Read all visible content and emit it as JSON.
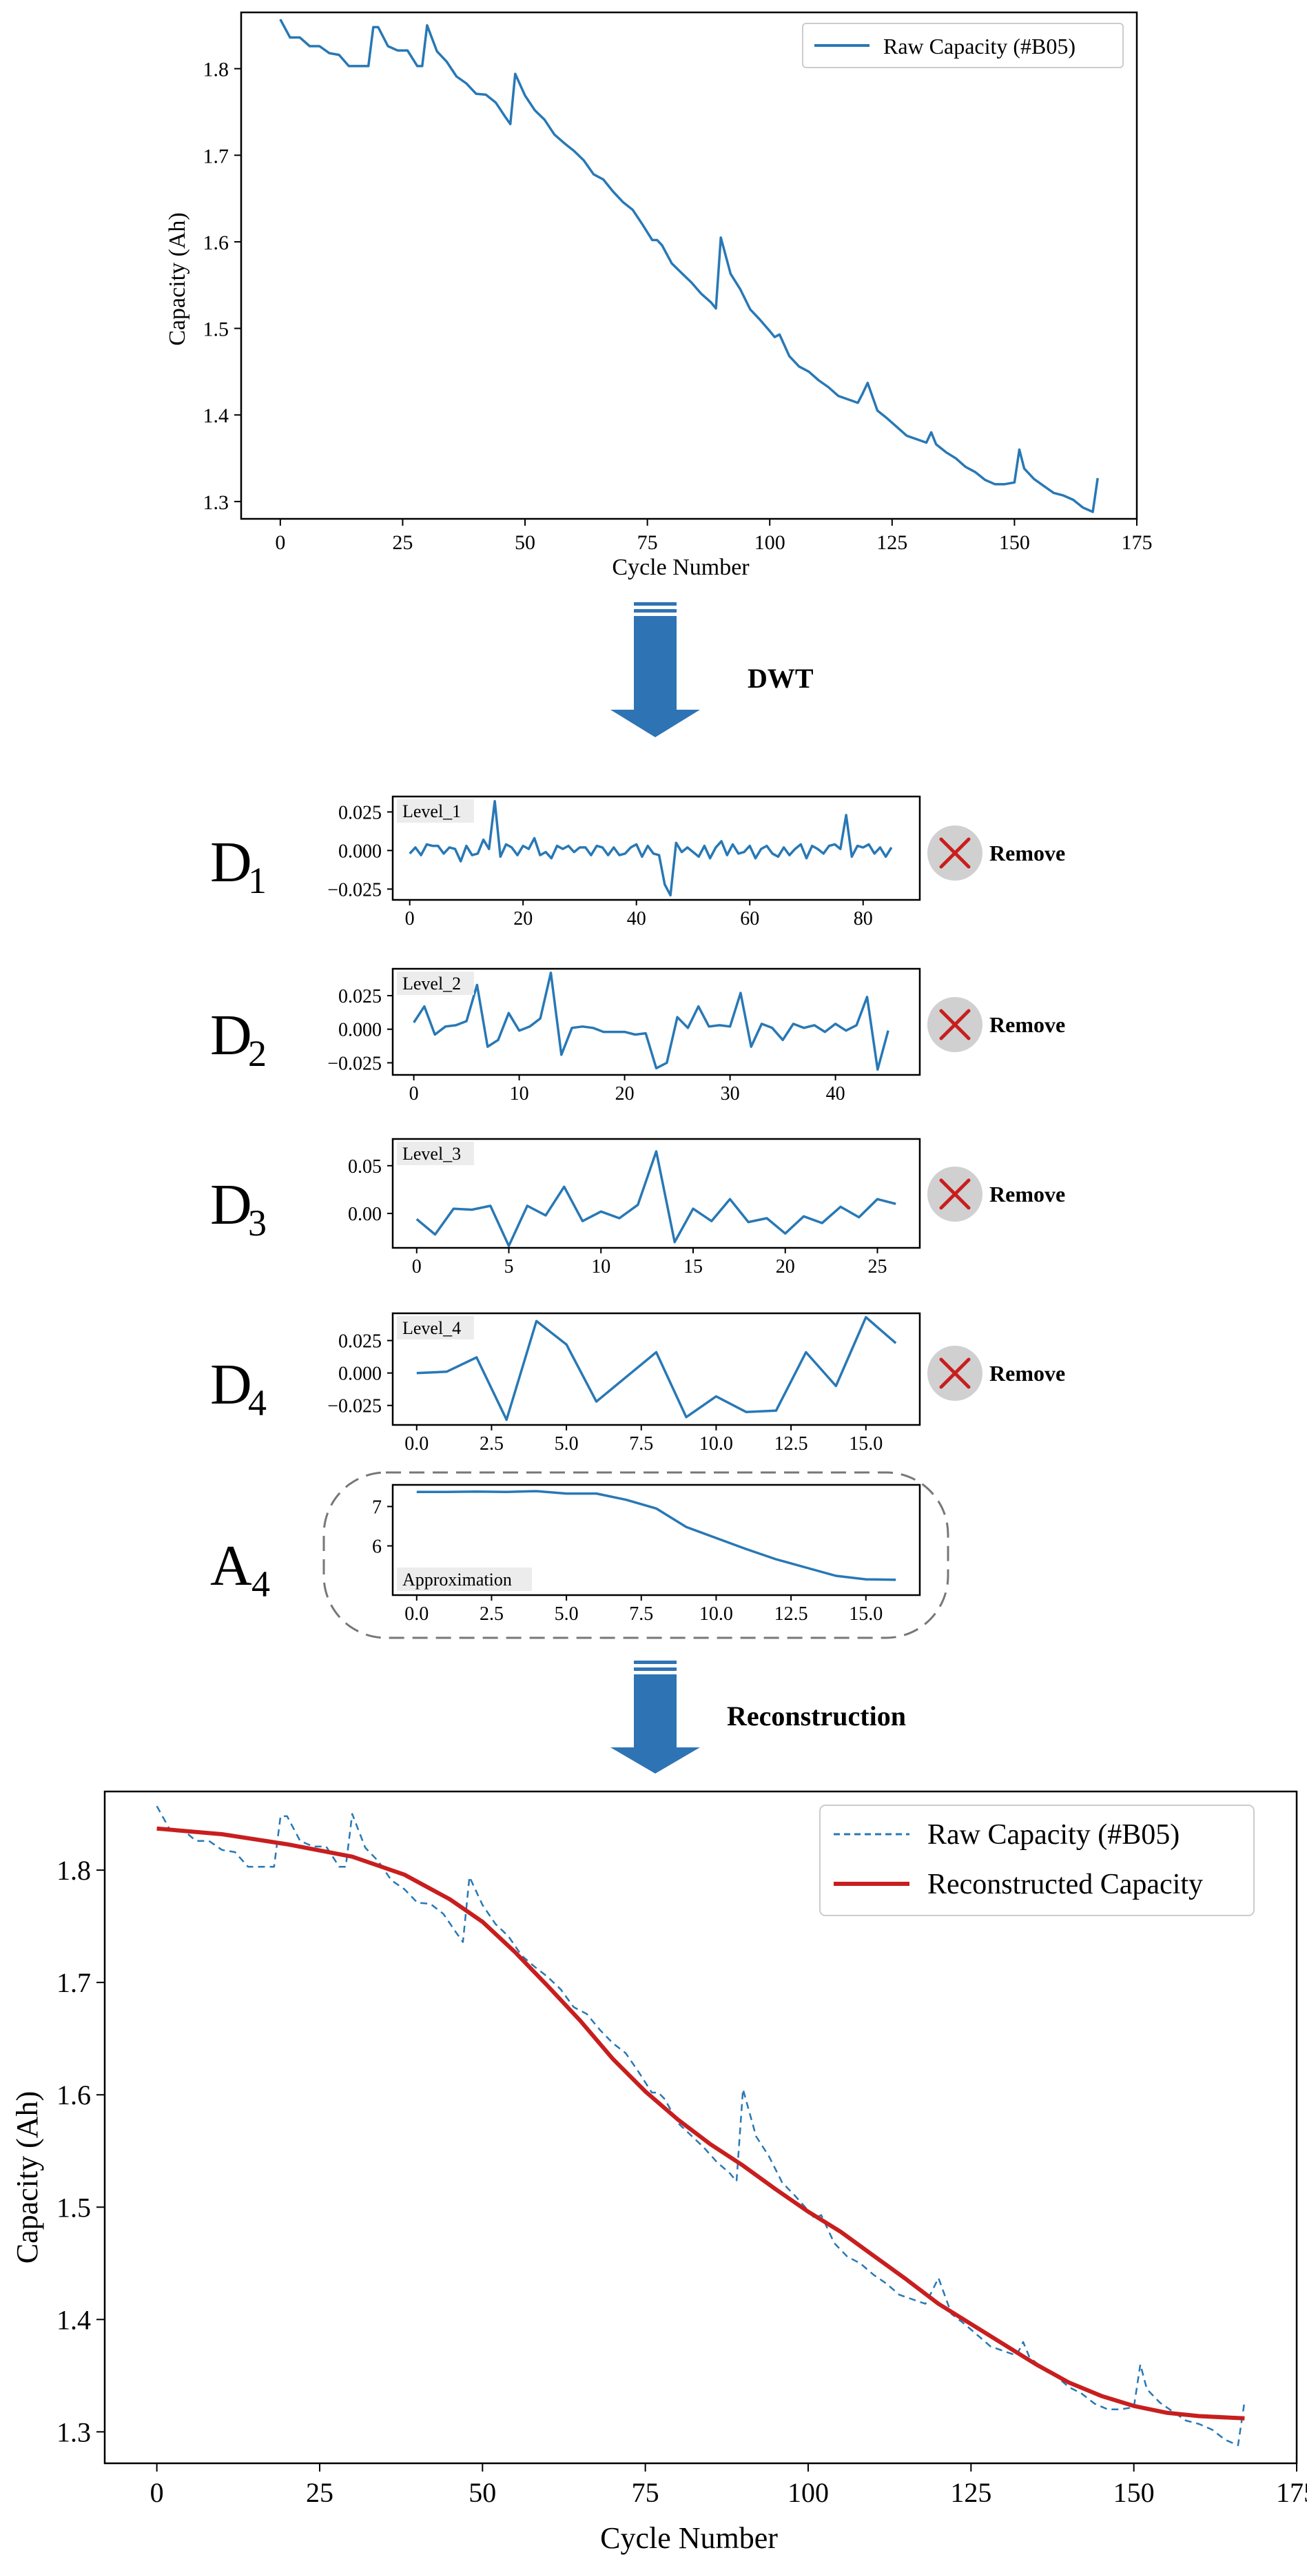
{
  "colors": {
    "raw": "#2878b5",
    "reconstructed": "#c81e1e",
    "arrow": "#2e74b5",
    "remove_badge_bg": "#d0d0d0",
    "remove_x": "#c81e1e",
    "level_tag_bg": "#ececec"
  },
  "icons": {
    "remove": "close-x-icon",
    "arrow": "down-arrow-icon"
  },
  "steps": {
    "dwt": "DWT",
    "reconstruction": "Reconstruction"
  },
  "remove_label": "Remove",
  "rows": [
    {
      "letter": "D",
      "sub": "1"
    },
    {
      "letter": "D",
      "sub": "2"
    },
    {
      "letter": "D",
      "sub": "3"
    },
    {
      "letter": "D",
      "sub": "4"
    },
    {
      "letter": "A",
      "sub": "4"
    }
  ],
  "chart_data": [
    {
      "id": "raw",
      "type": "line",
      "xlabel": "Cycle Number",
      "ylabel": "Capacity (Ah)",
      "xlim": [
        -8,
        175
      ],
      "ylim": [
        1.28,
        1.865
      ],
      "xticks": [
        0,
        25,
        50,
        75,
        100,
        125,
        150,
        175
      ],
      "yticks": [
        1.3,
        1.4,
        1.5,
        1.6,
        1.7,
        1.8
      ],
      "xticklabels": [
        "0",
        "25",
        "50",
        "75",
        "100",
        "125",
        "150",
        "175"
      ],
      "yticklabels": [
        "1.3",
        "1.4",
        "1.5",
        "1.6",
        "1.7",
        "1.8"
      ],
      "legend_position": "top-right",
      "series": [
        {
          "name": "Raw Capacity (#B05)",
          "x": [
            0,
            2,
            4,
            6,
            8,
            10,
            12,
            14,
            16,
            18,
            19,
            20,
            22,
            24,
            26,
            28,
            29,
            30,
            32,
            34,
            36,
            38,
            40,
            42,
            44,
            46,
            47,
            48,
            50,
            52,
            54,
            56,
            58,
            60,
            62,
            64,
            66,
            68,
            70,
            72,
            74,
            76,
            77,
            78,
            80,
            82,
            84,
            86,
            88,
            89,
            90,
            92,
            94,
            96,
            98,
            100,
            101,
            102,
            104,
            106,
            108,
            110,
            112,
            114,
            116,
            118,
            119,
            120,
            122,
            124,
            126,
            128,
            130,
            132,
            133,
            134,
            136,
            138,
            140,
            142,
            144,
            146,
            148,
            150,
            151,
            152,
            154,
            156,
            158,
            160,
            162,
            164,
            166,
            167
          ],
          "y": [
            1.857,
            1.836,
            1.836,
            1.826,
            1.826,
            1.818,
            1.816,
            1.803,
            1.803,
            1.803,
            1.848,
            1.848,
            1.826,
            1.821,
            1.821,
            1.803,
            1.803,
            1.85,
            1.82,
            1.808,
            1.791,
            1.783,
            1.771,
            1.77,
            1.761,
            1.744,
            1.736,
            1.794,
            1.769,
            1.752,
            1.741,
            1.724,
            1.714,
            1.705,
            1.694,
            1.678,
            1.672,
            1.658,
            1.646,
            1.637,
            1.62,
            1.602,
            1.602,
            1.596,
            1.575,
            1.564,
            1.553,
            1.54,
            1.53,
            1.523,
            1.605,
            1.563,
            1.545,
            1.522,
            1.51,
            1.497,
            1.49,
            1.493,
            1.468,
            1.456,
            1.45,
            1.44,
            1.432,
            1.422,
            1.418,
            1.414,
            1.425,
            1.437,
            1.405,
            1.396,
            1.386,
            1.376,
            1.372,
            1.368,
            1.38,
            1.366,
            1.357,
            1.35,
            1.34,
            1.334,
            1.325,
            1.32,
            1.32,
            1.322,
            1.36,
            1.338,
            1.326,
            1.318,
            1.31,
            1.307,
            1.302,
            1.293,
            1.288,
            1.327
          ]
        }
      ]
    },
    {
      "id": "d1",
      "type": "line",
      "tag": "Level_1",
      "xlim": [
        -3,
        90
      ],
      "ylim": [
        -0.032,
        0.035
      ],
      "xticks": [
        0,
        20,
        40,
        60,
        80
      ],
      "yticks": [
        -0.025,
        0.0,
        0.025
      ],
      "xticklabels": [
        "0",
        "20",
        "40",
        "60",
        "80"
      ],
      "yticklabels": [
        "−0.025",
        "0.000",
        "0.025"
      ],
      "series": [
        {
          "y": [
            -0.002,
            0.002,
            -0.003,
            0.004,
            0.003,
            0.003,
            -0.002,
            0.002,
            0.001,
            -0.007,
            0.003,
            -0.003,
            -0.002,
            0.007,
            0.001,
            0.032,
            -0.004,
            0.004,
            0.002,
            -0.003,
            0.003,
            0.001,
            0.008,
            -0.003,
            -0.001,
            -0.005,
            0.003,
            0.001,
            0.003,
            -0.001,
            0.002,
            0.002,
            -0.003,
            0.003,
            0.002,
            -0.003,
            0.002,
            -0.003,
            -0.002,
            0.002,
            0.004,
            -0.004,
            0.003,
            -0.002,
            -0.003,
            -0.022,
            -0.029,
            0.005,
            -0.001,
            0.002,
            -0.001,
            -0.004,
            0.003,
            -0.005,
            0.002,
            0.006,
            -0.003,
            0.004,
            -0.002,
            -0.001,
            0.003,
            -0.005,
            0.001,
            0.003,
            -0.002,
            -0.004,
            0.002,
            -0.003,
            0.001,
            0.004,
            -0.005,
            0.003,
            0.001,
            -0.002,
            0.003,
            0.004,
            0.001,
            0.023,
            -0.004,
            0.003,
            0.002,
            0.004,
            -0.002,
            0.002,
            -0.004,
            0.002
          ]
        }
      ]
    },
    {
      "id": "d2",
      "type": "line",
      "tag": "Level_2",
      "xlim": [
        -2,
        48
      ],
      "ylim": [
        -0.034,
        0.045
      ],
      "xticks": [
        0,
        10,
        20,
        30,
        40
      ],
      "yticks": [
        -0.025,
        0.0,
        0.025
      ],
      "xticklabels": [
        "0",
        "10",
        "20",
        "30",
        "40"
      ],
      "yticklabels": [
        "−0.025",
        "0.000",
        "0.025"
      ],
      "series": [
        {
          "y": [
            0.005,
            0.017,
            -0.004,
            0.002,
            0.003,
            0.006,
            0.033,
            -0.013,
            -0.008,
            0.012,
            -0.001,
            0.002,
            0.008,
            0.042,
            -0.019,
            0.001,
            0.002,
            0.001,
            -0.002,
            -0.002,
            -0.002,
            -0.004,
            -0.003,
            -0.029,
            -0.025,
            0.009,
            0.001,
            0.017,
            0.002,
            0.003,
            0.002,
            0.027,
            -0.013,
            0.004,
            0.001,
            -0.008,
            0.004,
            0.001,
            0.003,
            -0.002,
            0.004,
            -0.001,
            0.003,
            0.024,
            -0.03,
            -0.001
          ]
        }
      ]
    },
    {
      "id": "d3",
      "type": "line",
      "tag": "Level_3",
      "xlim": [
        -1.3,
        27.3
      ],
      "ylim": [
        -0.036,
        0.078
      ],
      "xticks": [
        0,
        5,
        10,
        15,
        20,
        25
      ],
      "yticks": [
        0.0,
        0.05
      ],
      "xticklabels": [
        "0",
        "5",
        "10",
        "15",
        "20",
        "25"
      ],
      "yticklabels": [
        "0.00",
        "0.05"
      ],
      "series": [
        {
          "y": [
            -0.006,
            -0.022,
            0.005,
            0.004,
            0.008,
            -0.034,
            0.008,
            -0.002,
            0.028,
            -0.008,
            0.002,
            -0.005,
            0.009,
            0.065,
            -0.03,
            0.005,
            -0.008,
            0.015,
            -0.009,
            -0.005,
            -0.021,
            -0.003,
            -0.01,
            0.007,
            -0.004,
            0.015,
            0.01
          ]
        }
      ]
    },
    {
      "id": "d4",
      "type": "line",
      "tag": "Level_4",
      "xlim": [
        -0.8,
        16.8
      ],
      "ylim": [
        -0.04,
        0.046
      ],
      "xticks": [
        0.0,
        2.5,
        5.0,
        7.5,
        10.0,
        12.5,
        15.0
      ],
      "yticks": [
        -0.025,
        0.0,
        0.025
      ],
      "xticklabels": [
        "0.0",
        "2.5",
        "5.0",
        "7.5",
        "10.0",
        "12.5",
        "15.0"
      ],
      "yticklabels": [
        "−0.025",
        "0.000",
        "0.025"
      ],
      "series": [
        {
          "y": [
            0.0,
            0.001,
            0.012,
            -0.036,
            0.04,
            0.022,
            -0.022,
            -0.003,
            0.016,
            -0.034,
            -0.018,
            -0.03,
            -0.029,
            0.016,
            -0.01,
            0.043,
            0.023
          ]
        }
      ]
    },
    {
      "id": "a4",
      "type": "line",
      "tag": "Approximation",
      "xlim": [
        -0.8,
        16.8
      ],
      "ylim": [
        4.75,
        7.55
      ],
      "xticks": [
        0.0,
        2.5,
        5.0,
        7.5,
        10.0,
        12.5,
        15.0
      ],
      "yticks": [
        6,
        7
      ],
      "xticklabels": [
        "0.0",
        "2.5",
        "5.0",
        "7.5",
        "10.0",
        "12.5",
        "15.0"
      ],
      "yticklabels": [
        "6",
        "7"
      ],
      "series": [
        {
          "y": [
            7.37,
            7.37,
            7.38,
            7.37,
            7.39,
            7.33,
            7.33,
            7.17,
            6.95,
            6.48,
            6.2,
            5.92,
            5.66,
            5.45,
            5.24,
            5.15,
            5.14
          ]
        }
      ]
    },
    {
      "id": "recon",
      "type": "line",
      "xlabel": "Cycle Number",
      "ylabel": "Capacity (Ah)",
      "xlim": [
        -8,
        175
      ],
      "ylim": [
        1.272,
        1.87
      ],
      "xticks": [
        0,
        25,
        50,
        75,
        100,
        125,
        150,
        175
      ],
      "yticks": [
        1.3,
        1.4,
        1.5,
        1.6,
        1.7,
        1.8
      ],
      "xticklabels": [
        "0",
        "25",
        "50",
        "75",
        "100",
        "125",
        "150",
        "175"
      ],
      "yticklabels": [
        "1.3",
        "1.4",
        "1.5",
        "1.6",
        "1.7",
        "1.8"
      ],
      "legend_position": "top-right",
      "series": [
        {
          "name": "Raw Capacity (#B05)",
          "style": "dashed",
          "ref": "raw"
        },
        {
          "name": "Reconstructed Capacity",
          "x": [
            0,
            10,
            20,
            30,
            38,
            45,
            50,
            55,
            60,
            65,
            70,
            75,
            80,
            85,
            90,
            95,
            100,
            105,
            110,
            115,
            120,
            125,
            130,
            135,
            140,
            145,
            150,
            155,
            160,
            167
          ],
          "y": [
            1.837,
            1.832,
            1.823,
            1.812,
            1.796,
            1.774,
            1.754,
            1.727,
            1.697,
            1.666,
            1.632,
            1.603,
            1.578,
            1.556,
            1.537,
            1.516,
            1.496,
            1.478,
            1.457,
            1.436,
            1.414,
            1.396,
            1.378,
            1.36,
            1.344,
            1.332,
            1.323,
            1.317,
            1.314,
            1.312
          ]
        }
      ]
    }
  ]
}
